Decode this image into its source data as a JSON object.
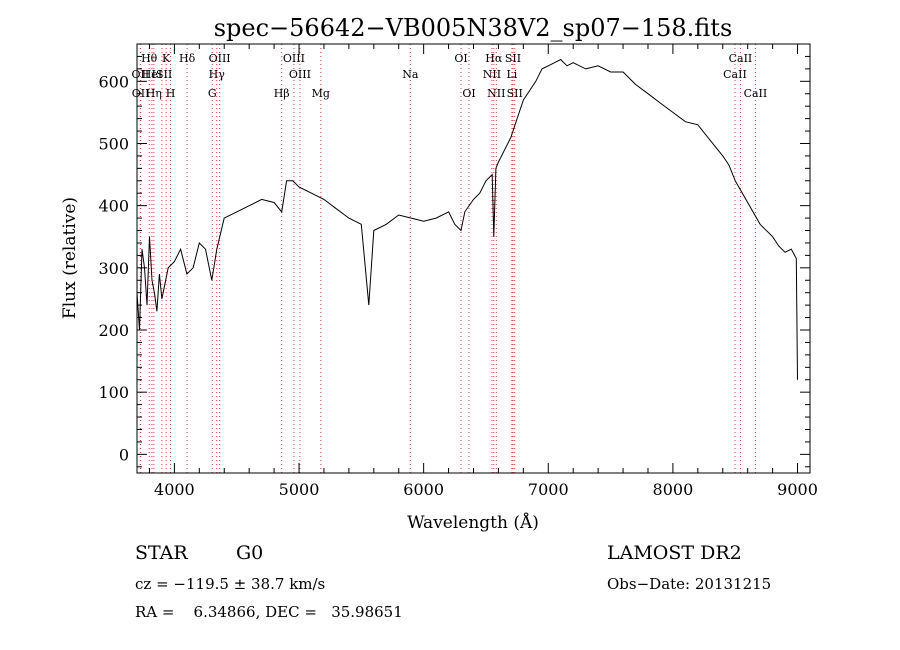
{
  "chart_data": {
    "type": "line",
    "title": "spec−56642−VB005N38V2_sp07−158.fits",
    "xlabel": "Wavelength (Å)",
    "ylabel": "Flux (relative)",
    "xlim": [
      3700,
      9100
    ],
    "ylim": [
      -30,
      660
    ],
    "xticks": [
      4000,
      5000,
      6000,
      7000,
      8000,
      9000
    ],
    "yticks": [
      0,
      100,
      200,
      300,
      400,
      500,
      600
    ],
    "grid": false,
    "line_color": "#000000",
    "marker_color": "#d04040",
    "series": [
      {
        "x": [
          3700,
          3720,
          3740,
          3760,
          3780,
          3800,
          3820,
          3840,
          3860,
          3880,
          3900,
          3950,
          4000,
          4050,
          4100,
          4150,
          4200,
          4250,
          4300,
          4340,
          4400,
          4500,
          4600,
          4700,
          4800,
          4861,
          4900,
          4950,
          5000,
          5100,
          5200,
          5300,
          5400,
          5500,
          5560,
          5600,
          5700,
          5800,
          5900,
          6000,
          6100,
          6200,
          6250,
          6300,
          6330,
          6400,
          6450,
          6500,
          6550,
          6563,
          6580,
          6600,
          6650,
          6700,
          6750,
          6800,
          6850,
          6900,
          6950,
          7000,
          7050,
          7100,
          7150,
          7200,
          7300,
          7400,
          7500,
          7600,
          7700,
          7800,
          7900,
          8000,
          8100,
          8200,
          8300,
          8400,
          8450,
          8500,
          8600,
          8700,
          8800,
          8850,
          8900,
          8950,
          8990,
          9000
        ],
        "y": [
          260,
          200,
          330,
          300,
          240,
          350,
          280,
          260,
          230,
          290,
          250,
          300,
          310,
          330,
          290,
          300,
          340,
          330,
          280,
          330,
          380,
          390,
          400,
          410,
          405,
          390,
          440,
          440,
          430,
          420,
          410,
          395,
          380,
          370,
          240,
          360,
          370,
          385,
          380,
          375,
          380,
          390,
          370,
          360,
          390,
          410,
          420,
          440,
          450,
          350,
          460,
          470,
          490,
          510,
          540,
          570,
          585,
          600,
          620,
          625,
          630,
          635,
          625,
          630,
          620,
          625,
          615,
          615,
          595,
          580,
          565,
          550,
          535,
          530,
          505,
          480,
          465,
          440,
          405,
          370,
          350,
          335,
          325,
          330,
          315,
          120
        ]
      }
    ],
    "annotations": [
      {
        "label": "Hθ",
        "x": 3798,
        "row": 1
      },
      {
        "label": "OII",
        "x": 3727,
        "row": 2
      },
      {
        "label": "OII",
        "x": 3729,
        "row": 3
      },
      {
        "label": "HeI",
        "x": 3820,
        "row": 2
      },
      {
        "label": "Hη",
        "x": 3835,
        "row": 3
      },
      {
        "label": "K",
        "x": 3934,
        "row": 1
      },
      {
        "label": "ISII",
        "x": 3900,
        "row": 2
      },
      {
        "label": "H",
        "x": 3969,
        "row": 3
      },
      {
        "label": "Hδ",
        "x": 4102,
        "row": 1
      },
      {
        "label": "OIII",
        "x": 4363,
        "row": 1
      },
      {
        "label": "Hγ",
        "x": 4340,
        "row": 2
      },
      {
        "label": "G",
        "x": 4304,
        "row": 3
      },
      {
        "label": "OIII",
        "x": 4959,
        "row": 1
      },
      {
        "label": "OIII",
        "x": 5007,
        "row": 2
      },
      {
        "label": "Hβ",
        "x": 4861,
        "row": 3
      },
      {
        "label": "Mg",
        "x": 5175,
        "row": 3
      },
      {
        "label": "Na",
        "x": 5893,
        "row": 2
      },
      {
        "label": "OI",
        "x": 6300,
        "row": 1
      },
      {
        "label": "OI",
        "x": 6364,
        "row": 3
      },
      {
        "label": "Hα",
        "x": 6563,
        "row": 1
      },
      {
        "label": "SII",
        "x": 6717,
        "row": 1
      },
      {
        "label": "NII",
        "x": 6548,
        "row": 2
      },
      {
        "label": "Li",
        "x": 6708,
        "row": 2
      },
      {
        "label": "NII",
        "x": 6583,
        "row": 3
      },
      {
        "label": "SII",
        "x": 6731,
        "row": 3
      },
      {
        "label": "CaII",
        "x": 8542,
        "row": 1
      },
      {
        "label": "CaII",
        "x": 8498,
        "row": 2
      },
      {
        "label": "CaII",
        "x": 8662,
        "row": 3
      }
    ]
  },
  "info": {
    "class_label": "STAR",
    "subclass_label": "G0",
    "survey": "LAMOST DR2",
    "cz": "cz = −119.5 ± 38.7 km/s",
    "obs_date": "Obs−Date: 20131215",
    "coords": "RA =    6.34866, DEC =   35.98651"
  }
}
